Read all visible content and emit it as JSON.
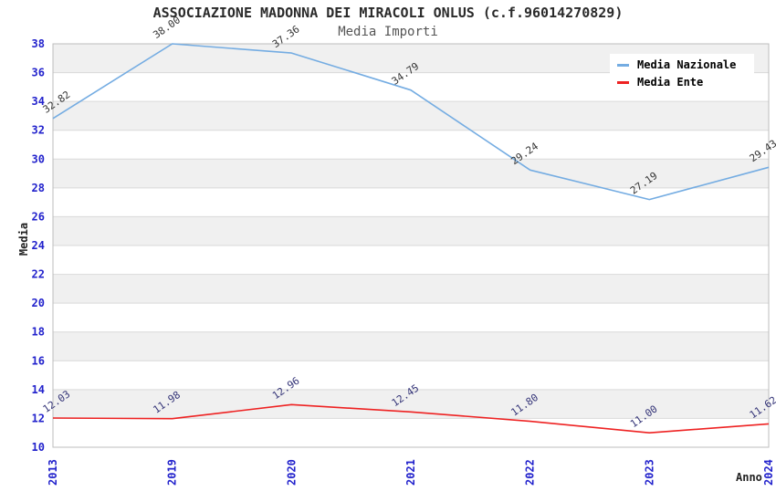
{
  "header": {
    "title": "ASSOCIAZIONE MADONNA DEI MIRACOLI ONLUS (c.f.96014270829)",
    "subtitle": "Media Importi"
  },
  "chart_data": {
    "type": "line",
    "title": "ASSOCIAZIONE MADONNA DEI MIRACOLI ONLUS (c.f.96014270829)",
    "subtitle": "Media Importi",
    "categories": [
      "2013",
      "2019",
      "2020",
      "2021",
      "2022",
      "2023",
      "2024"
    ],
    "series": [
      {
        "name": "Media Nazionale",
        "color": "#74ace2",
        "label_color": "#333333",
        "values": [
          32.82,
          38.0,
          37.36,
          34.79,
          29.24,
          27.19,
          29.43
        ]
      },
      {
        "name": "Media Ente",
        "color": "#ee2222",
        "label_color": "#333377",
        "values": [
          12.03,
          11.98,
          12.96,
          12.45,
          11.8,
          11.0,
          11.62
        ]
      }
    ],
    "xlabel": "Anno",
    "ylabel": "Media",
    "ylim": [
      10,
      38
    ],
    "ytick_step": 2,
    "grid": "horizontal-bands",
    "legend_position": "top-right",
    "colors": {
      "tick_label": "#2222cc",
      "band_gray": "#f0f0f0",
      "band_white": "#ffffff",
      "grid_line": "#d9d9d9",
      "plot_border": "#bcbcbc"
    }
  }
}
